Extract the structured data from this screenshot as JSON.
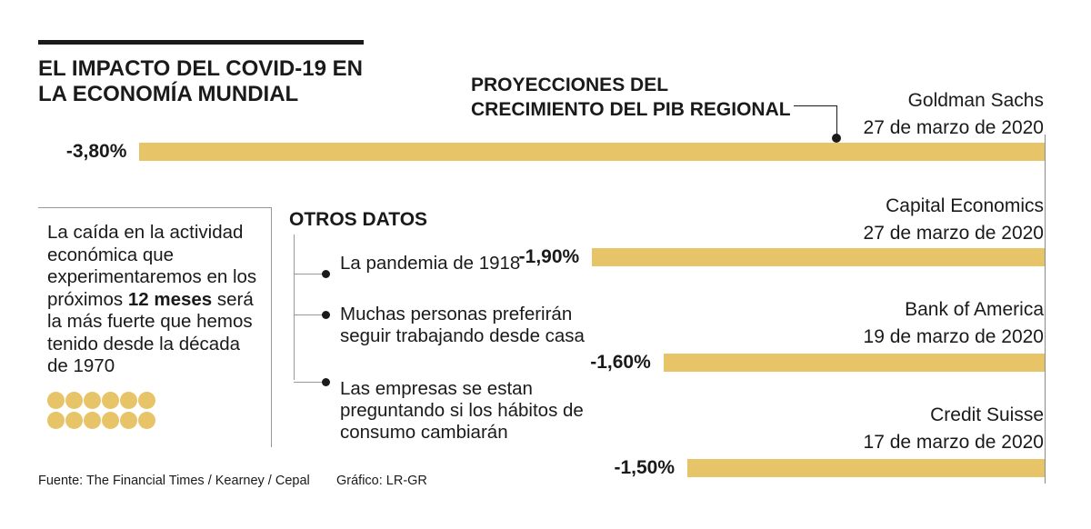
{
  "title": "EL IMPACTO DEL COVID-19 EN LA ECONOMÍA MUNDIAL",
  "chart_data": {
    "type": "bar",
    "orientation": "horizontal",
    "title": "PROYECCIONES DEL CRECIMIENTO DEL PIB REGIONAL",
    "unit": "%",
    "color": "#e8c468",
    "series": [
      {
        "name": "Goldman Sachs",
        "date": "27 de marzo de 2020",
        "value": -3.8,
        "label": "-3,80%"
      },
      {
        "name": "Capital Economics",
        "date": "27 de marzo de 2020",
        "value": -1.9,
        "label": "-1,90%"
      },
      {
        "name": "Bank of America",
        "date": "19 de marzo de 2020",
        "value": -1.6,
        "label": "-1,60%"
      },
      {
        "name": "Credit Suisse",
        "date": "17 de marzo de 2020",
        "value": -1.5,
        "label": "-1,50%"
      }
    ]
  },
  "info_box": {
    "text_before": "La caída en la actividad económica que experimentaremos en los próximos ",
    "highlight": "12 meses",
    "text_after": " será la más fuerte que hemos tenido desde la década de 1970"
  },
  "otros_datos": {
    "title": "OTROS DATOS",
    "items": [
      "La pandemia de 1918",
      "Muchas personas preferirán seguir trabajando desde casa",
      "Las empresas se estan preguntando si los hábitos de consumo cambiarán"
    ]
  },
  "footer": {
    "source": "Fuente: The Financial Times / Kearney / Cepal",
    "credit": "Gráfico: LR-GR"
  }
}
